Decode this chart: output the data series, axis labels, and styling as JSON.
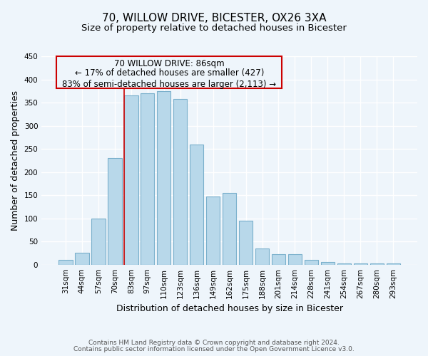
{
  "title": "70, WILLOW DRIVE, BICESTER, OX26 3XA",
  "subtitle": "Size of property relative to detached houses in Bicester",
  "xlabel": "Distribution of detached houses by size in Bicester",
  "ylabel": "Number of detached properties",
  "footnote1": "Contains HM Land Registry data © Crown copyright and database right 2024.",
  "footnote2": "Contains public sector information licensed under the Open Government Licence v3.0.",
  "categories": [
    "31sqm",
    "44sqm",
    "57sqm",
    "70sqm",
    "83sqm",
    "97sqm",
    "110sqm",
    "123sqm",
    "136sqm",
    "149sqm",
    "162sqm",
    "175sqm",
    "188sqm",
    "201sqm",
    "214sqm",
    "228sqm",
    "241sqm",
    "254sqm",
    "267sqm",
    "280sqm",
    "293sqm"
  ],
  "values": [
    10,
    25,
    100,
    230,
    365,
    370,
    375,
    357,
    260,
    147,
    155,
    95,
    35,
    22,
    22,
    10,
    5,
    2,
    2,
    2,
    2
  ],
  "bar_color": "#b8d8ea",
  "bar_edge_color": "#7ab0cc",
  "vline_index": 4,
  "vline_color": "#cc0000",
  "ann_line1": "70 WILLOW DRIVE: 86sqm",
  "ann_line2": "← 17% of detached houses are smaller (427)",
  "ann_line3": "83% of semi-detached houses are larger (2,113) →",
  "ylim": [
    0,
    450
  ],
  "yticks": [
    0,
    50,
    100,
    150,
    200,
    250,
    300,
    350,
    400,
    450
  ],
  "background_color": "#eef5fb",
  "grid_color": "#ffffff",
  "title_fontsize": 11,
  "subtitle_fontsize": 9.5,
  "axis_label_fontsize": 9,
  "tick_fontsize": 7.5,
  "annotation_fontsize": 8.5
}
